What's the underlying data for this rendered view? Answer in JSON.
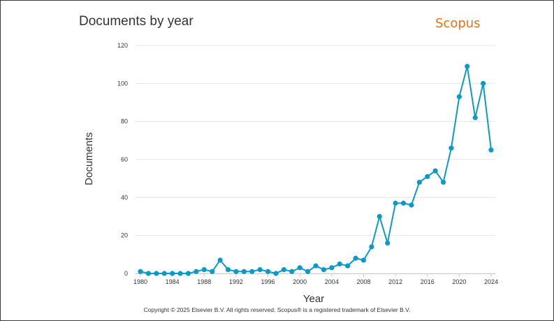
{
  "header": {
    "title": "Documents by year",
    "brand": "Scopus",
    "brand_color": "#e9711c"
  },
  "footer": {
    "copyright": "Copyright © 2025 Elsevier B.V. All rights reserved. Scopus® is a registered trademark of Elsevier B.V."
  },
  "chart_data": {
    "type": "line",
    "title": "Documents by year",
    "xlabel": "Year",
    "ylabel": "Documents",
    "xlim": [
      1980,
      2024
    ],
    "ylim": [
      0,
      120
    ],
    "yticks": [
      0,
      20,
      40,
      60,
      80,
      100,
      120
    ],
    "xticks": [
      1980,
      1984,
      1988,
      1992,
      1996,
      2000,
      2004,
      2008,
      2012,
      2016,
      2020,
      2024
    ],
    "grid": true,
    "line_color": "#0b9ac7",
    "series": [
      {
        "x": [
          1980,
          1981,
          1982,
          1983,
          1984,
          1985,
          1986,
          1987,
          1988,
          1989,
          1990,
          1991,
          1992,
          1993,
          1994,
          1995,
          1996,
          1997,
          1998,
          1999,
          2000,
          2001,
          2002,
          2003,
          2004,
          2005,
          2006,
          2007,
          2008,
          2009,
          2010,
          2011,
          2012,
          2013,
          2014,
          2015,
          2016,
          2017,
          2018,
          2019,
          2020,
          2021,
          2022,
          2023,
          2024
        ],
        "values": [
          1,
          0,
          0,
          0,
          0,
          0,
          0,
          1,
          2,
          1,
          7,
          2,
          1,
          1,
          1,
          2,
          1,
          0,
          2,
          1,
          3,
          1,
          4,
          2,
          3,
          5,
          4,
          8,
          7,
          14,
          30,
          16,
          37,
          37,
          36,
          48,
          51,
          54,
          48,
          66,
          93,
          109,
          82,
          100,
          65
        ]
      }
    ]
  }
}
